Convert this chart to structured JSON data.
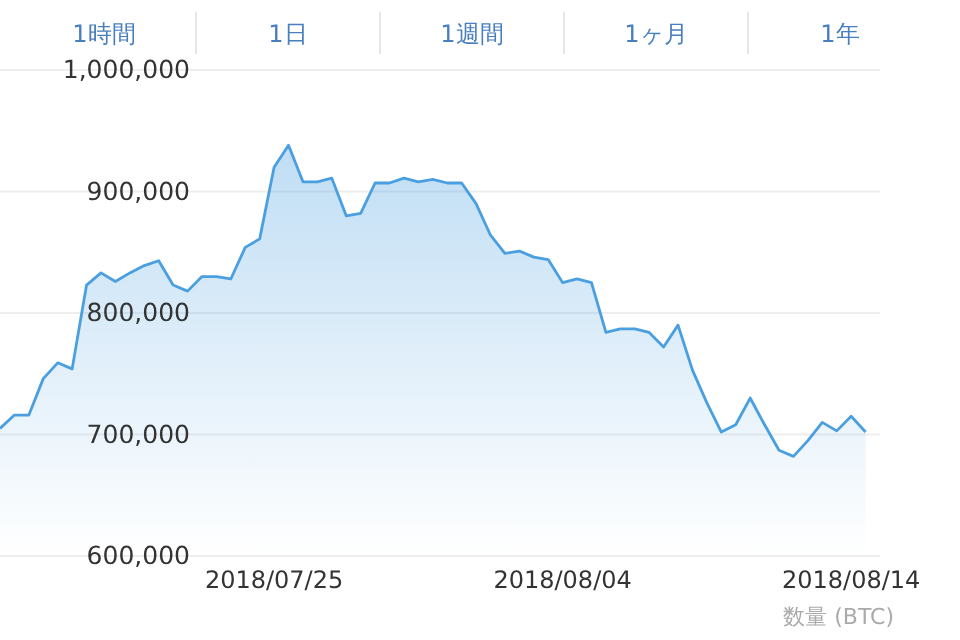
{
  "chart_data": {
    "type": "area",
    "color": "#4a9fe0",
    "x": [
      "2018-07-15T12:00",
      "2018-07-16T00:00",
      "2018-07-16T12:00",
      "2018-07-17T00:00",
      "2018-07-17T12:00",
      "2018-07-18T00:00",
      "2018-07-18T12:00",
      "2018-07-19T00:00",
      "2018-07-19T12:00",
      "2018-07-20T00:00",
      "2018-07-20T12:00",
      "2018-07-21T00:00",
      "2018-07-21T12:00",
      "2018-07-22T00:00",
      "2018-07-22T12:00",
      "2018-07-23T00:00",
      "2018-07-23T12:00",
      "2018-07-24T00:00",
      "2018-07-24T12:00",
      "2018-07-25T00:00",
      "2018-07-25T12:00",
      "2018-07-26T00:00",
      "2018-07-26T12:00",
      "2018-07-27T00:00",
      "2018-07-27T12:00",
      "2018-07-28T00:00",
      "2018-07-28T12:00",
      "2018-07-29T00:00",
      "2018-07-29T12:00",
      "2018-07-30T00:00",
      "2018-07-30T12:00",
      "2018-07-31T00:00",
      "2018-07-31T12:00",
      "2018-08-01T00:00",
      "2018-08-01T12:00",
      "2018-08-02T00:00",
      "2018-08-02T12:00",
      "2018-08-03T00:00",
      "2018-08-03T12:00",
      "2018-08-04T00:00",
      "2018-08-04T12:00",
      "2018-08-05T00:00",
      "2018-08-05T12:00",
      "2018-08-06T00:00",
      "2018-08-06T12:00",
      "2018-08-07T00:00",
      "2018-08-07T12:00",
      "2018-08-08T00:00",
      "2018-08-08T12:00",
      "2018-08-09T00:00",
      "2018-08-09T12:00",
      "2018-08-10T00:00",
      "2018-08-10T12:00",
      "2018-08-11T00:00",
      "2018-08-11T12:00",
      "2018-08-12T00:00",
      "2018-08-12T12:00",
      "2018-08-13T00:00",
      "2018-08-13T12:00",
      "2018-08-14T00:00",
      "2018-08-14T12:00"
    ],
    "values": [
      705000,
      716000,
      716000,
      746000,
      759000,
      754000,
      823000,
      833000,
      826000,
      833000,
      839000,
      843000,
      823000,
      818000,
      830000,
      830000,
      828000,
      854000,
      861000,
      920000,
      938000,
      908000,
      908000,
      911000,
      880000,
      882000,
      907000,
      907000,
      911000,
      908000,
      910000,
      907000,
      907000,
      890000,
      864000,
      849000,
      851000,
      846000,
      844000,
      825000,
      828000,
      825000,
      784000,
      787000,
      787000,
      784000,
      772000,
      790000,
      753000,
      726000,
      702000,
      708000,
      730000,
      708000,
      687000,
      682000,
      695000,
      710000,
      703000,
      715000,
      702000
    ],
    "xlim": [
      "2018-07-15T12:00",
      "2018-08-15T00:00"
    ],
    "xticks": [
      {
        "value": "2018-07-25",
        "label": "2018/07/25"
      },
      {
        "value": "2018-08-04",
        "label": "2018/08/04"
      },
      {
        "value": "2018-08-14",
        "label": "2018/08/14"
      }
    ],
    "ylim": [
      600000,
      1000000
    ],
    "yticks": [
      {
        "value": 600000,
        "label": "600,000"
      },
      {
        "value": 700000,
        "label": "700,000"
      },
      {
        "value": 800000,
        "label": "800,000"
      },
      {
        "value": 900000,
        "label": "900,000"
      },
      {
        "value": 1000000,
        "label": "1,000,000"
      }
    ],
    "grid": "y",
    "marker": "none",
    "line_style": "solid",
    "annotations": [
      "1時間",
      "1日",
      "1週間",
      "1ヶ月",
      "1年",
      "数量 (BTC)"
    ]
  }
}
